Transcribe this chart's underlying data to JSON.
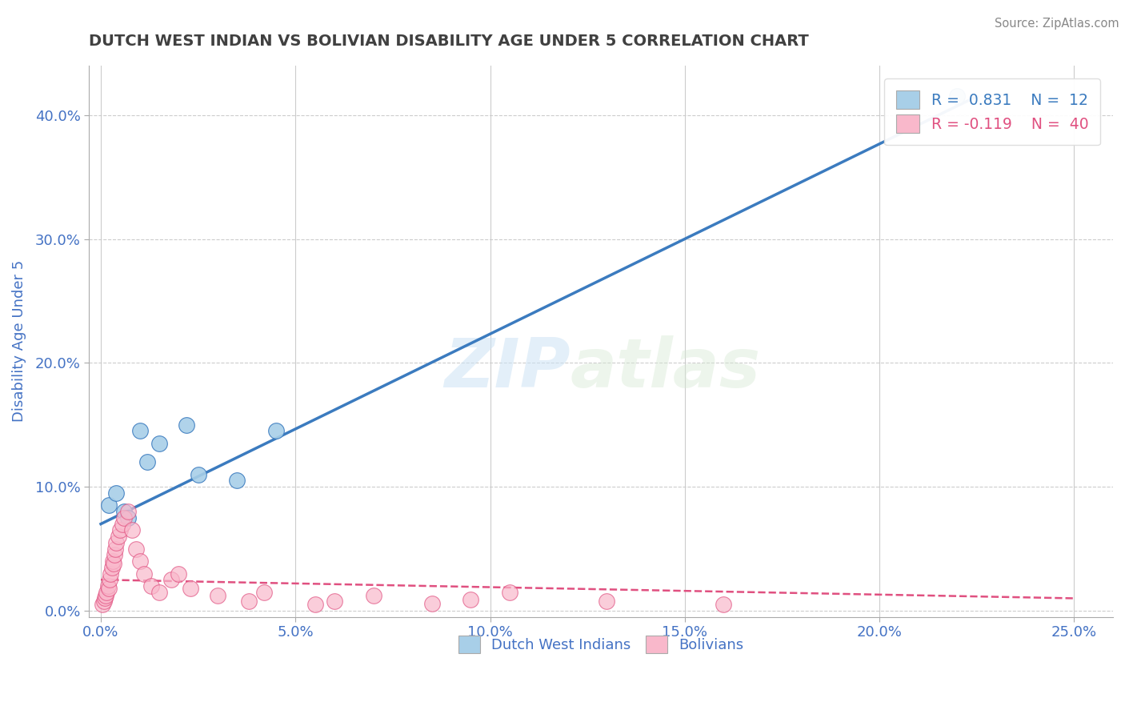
{
  "title": "DUTCH WEST INDIAN VS BOLIVIAN DISABILITY AGE UNDER 5 CORRELATION CHART",
  "source": "Source: ZipAtlas.com",
  "xlabel_vals": [
    0.0,
    5.0,
    10.0,
    15.0,
    20.0,
    25.0
  ],
  "ylabel_vals": [
    0.0,
    10.0,
    20.0,
    30.0,
    40.0
  ],
  "ylabel_label": "Disability Age Under 5",
  "xlim": [
    -0.3,
    26.0
  ],
  "ylim": [
    -0.5,
    44.0
  ],
  "legend_blue_R": "0.831",
  "legend_blue_N": "12",
  "legend_pink_R": "-0.119",
  "legend_pink_N": "40",
  "blue_color": "#a8cfe8",
  "blue_line_color": "#3b7bbf",
  "pink_color": "#f9b8cb",
  "pink_line_color": "#e05080",
  "watermark_zip": "ZIP",
  "watermark_atlas": "atlas",
  "blue_scatter_x": [
    0.2,
    0.4,
    0.6,
    0.7,
    1.0,
    1.2,
    1.5,
    2.2,
    2.5,
    3.5,
    4.5,
    22.0
  ],
  "blue_scatter_y": [
    8.5,
    9.5,
    8.0,
    7.5,
    14.5,
    12.0,
    13.5,
    15.0,
    11.0,
    10.5,
    14.5,
    41.5
  ],
  "pink_scatter_x": [
    0.05,
    0.08,
    0.1,
    0.12,
    0.15,
    0.18,
    0.2,
    0.22,
    0.25,
    0.28,
    0.3,
    0.32,
    0.35,
    0.38,
    0.4,
    0.45,
    0.5,
    0.55,
    0.6,
    0.7,
    0.8,
    0.9,
    1.0,
    1.1,
    1.3,
    1.5,
    1.8,
    2.0,
    2.3,
    3.0,
    3.8,
    4.2,
    5.5,
    6.0,
    7.0,
    8.5,
    9.5,
    10.5,
    13.0,
    16.0
  ],
  "pink_scatter_y": [
    0.5,
    0.8,
    1.0,
    1.2,
    1.5,
    2.0,
    1.8,
    2.5,
    3.0,
    3.5,
    4.0,
    3.8,
    4.5,
    5.0,
    5.5,
    6.0,
    6.5,
    7.0,
    7.5,
    8.0,
    6.5,
    5.0,
    4.0,
    3.0,
    2.0,
    1.5,
    2.5,
    3.0,
    1.8,
    1.2,
    0.8,
    1.5,
    0.5,
    0.8,
    1.2,
    0.6,
    0.9,
    1.5,
    0.8,
    0.5
  ],
  "blue_line_x": [
    0.0,
    22.5
  ],
  "blue_line_y": [
    7.0,
    41.5
  ],
  "pink_line_x": [
    0.0,
    25.0
  ],
  "pink_line_y": [
    2.5,
    1.0
  ],
  "grid_color": "#cccccc",
  "background_color": "#ffffff",
  "title_color": "#404040",
  "tick_label_color": "#4472c4"
}
